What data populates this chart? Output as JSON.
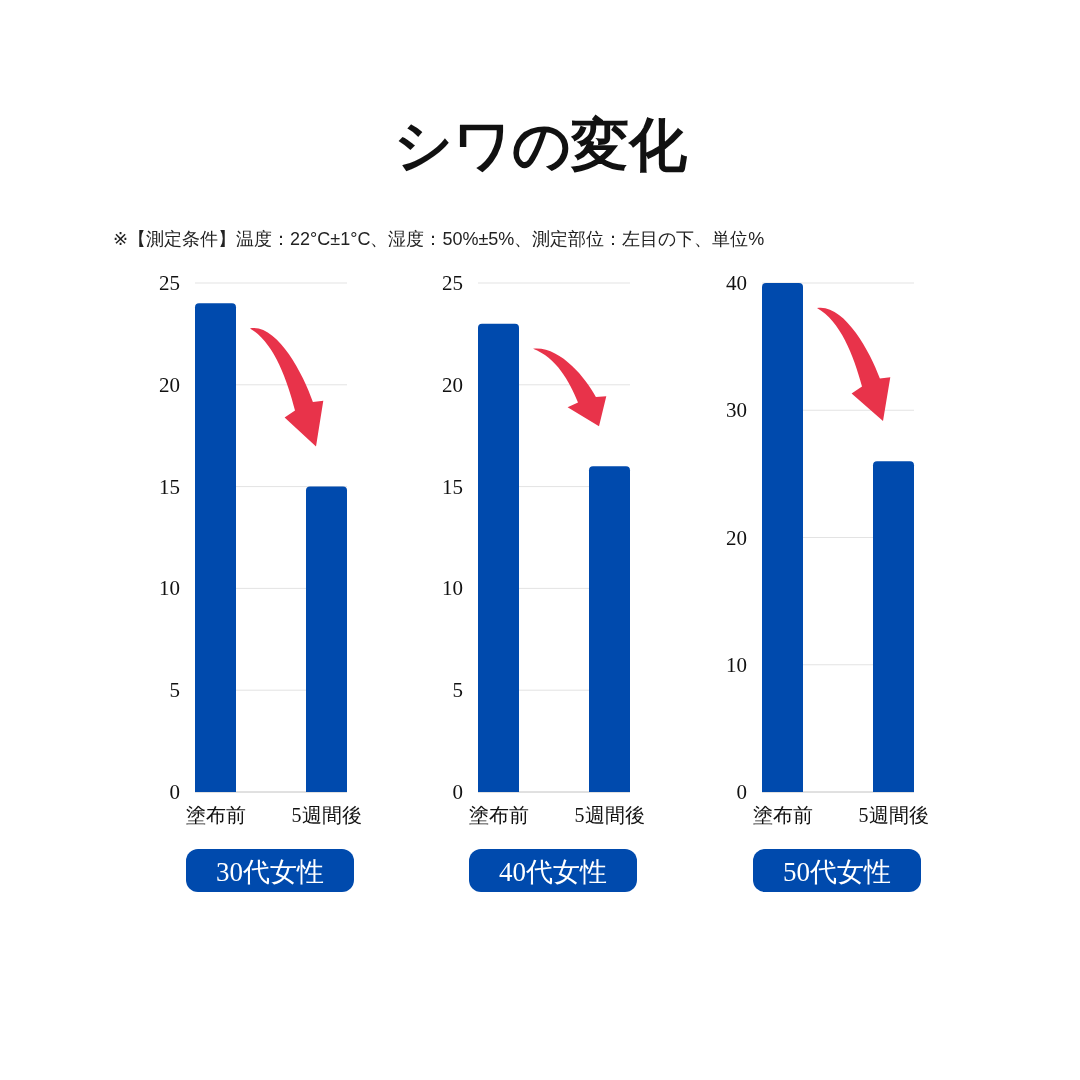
{
  "chart_data": [
    {
      "type": "other",
      "title": "シワの変化",
      "subtitle": "※【測定条件】温度：22°C±1°C、湿度：50%±5%、測定部位：左目の下、単位%"
    },
    {
      "type": "bar",
      "categories": [
        "塗布前",
        "5週間後"
      ],
      "values": [
        24,
        15
      ],
      "color": "#004aad",
      "ylim": [
        0,
        25
      ],
      "yticks": [
        0,
        5,
        10,
        15,
        20,
        25
      ],
      "grid": "y",
      "xlabel": "30代女性"
    },
    {
      "type": "bar",
      "categories": [
        "塗布前",
        "5週間後"
      ],
      "values": [
        23,
        16
      ],
      "color": "#004aad",
      "ylim": [
        0,
        25
      ],
      "yticks": [
        0,
        5,
        10,
        15,
        20,
        25
      ],
      "grid": "y",
      "xlabel": "40代女性"
    },
    {
      "type": "bar",
      "categories": [
        "塗布前",
        "5週間後"
      ],
      "values": [
        40,
        26
      ],
      "color": "#004aad",
      "ylim": [
        0,
        40
      ],
      "yticks": [
        0,
        10,
        20,
        30,
        40
      ],
      "grid": "y",
      "xlabel": "50代女性"
    }
  ]
}
